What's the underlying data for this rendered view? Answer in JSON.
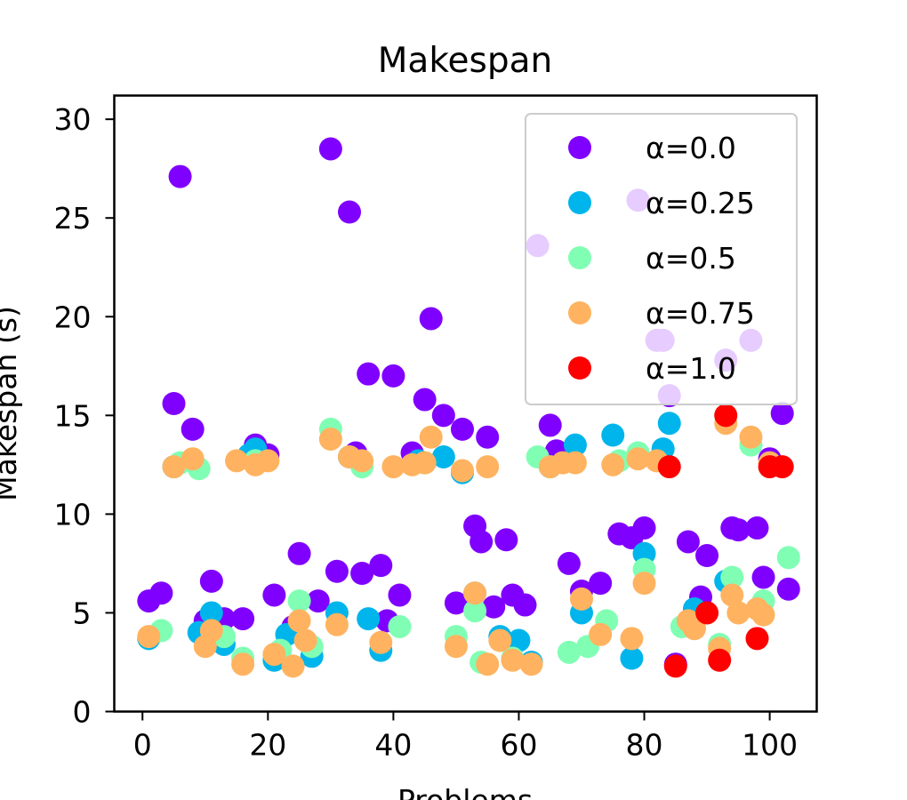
{
  "chart_data": {
    "type": "scatter",
    "title": "Makespan",
    "xlabel": "Problems",
    "ylabel": "Makespan (s)",
    "xlim": [
      -4.5,
      107.5
    ],
    "ylim": [
      0,
      31.2
    ],
    "xticks": [
      0,
      20,
      40,
      60,
      80,
      100
    ],
    "yticks": [
      0,
      5,
      10,
      15,
      20,
      25,
      30
    ],
    "grid": false,
    "legend_position": "top-right",
    "series": [
      {
        "name": "α=0.0",
        "color": "#8000ff",
        "points": [
          [
            1,
            5.6
          ],
          [
            3,
            6.0
          ],
          [
            5,
            15.6
          ],
          [
            6,
            27.1
          ],
          [
            8,
            14.3
          ],
          [
            10,
            4.6
          ],
          [
            11,
            6.6
          ],
          [
            13,
            4.7
          ],
          [
            16,
            4.7
          ],
          [
            18,
            13.5
          ],
          [
            20,
            13.0
          ],
          [
            21,
            5.9
          ],
          [
            24,
            4.3
          ],
          [
            25,
            8.0
          ],
          [
            28,
            5.6
          ],
          [
            30,
            28.5
          ],
          [
            31,
            7.1
          ],
          [
            33,
            25.3
          ],
          [
            34,
            13.1
          ],
          [
            35,
            7.0
          ],
          [
            36,
            17.1
          ],
          [
            38,
            7.4
          ],
          [
            39,
            4.6
          ],
          [
            40,
            17.0
          ],
          [
            41,
            5.9
          ],
          [
            43,
            13.1
          ],
          [
            45,
            15.8
          ],
          [
            46,
            19.9
          ],
          [
            48,
            15.0
          ],
          [
            50,
            5.5
          ],
          [
            51,
            14.3
          ],
          [
            53,
            9.4
          ],
          [
            54,
            8.6
          ],
          [
            55,
            13.9
          ],
          [
            56,
            5.3
          ],
          [
            58,
            8.7
          ],
          [
            59,
            5.9
          ],
          [
            61,
            5.4
          ],
          [
            63,
            23.6
          ],
          [
            65,
            14.5
          ],
          [
            66,
            13.2
          ],
          [
            68,
            7.5
          ],
          [
            70,
            6.1
          ],
          [
            73,
            6.5
          ],
          [
            76,
            9.0
          ],
          [
            78,
            8.8
          ],
          [
            79,
            25.9
          ],
          [
            80,
            9.3
          ],
          [
            82,
            18.8
          ],
          [
            83,
            18.8
          ],
          [
            84,
            16.0
          ],
          [
            85,
            2.4
          ],
          [
            87,
            8.6
          ],
          [
            89,
            5.8
          ],
          [
            90,
            7.9
          ],
          [
            93,
            17.8
          ],
          [
            94,
            9.3
          ],
          [
            95,
            9.2
          ],
          [
            97,
            18.8
          ],
          [
            98,
            9.3
          ],
          [
            99,
            6.8
          ],
          [
            100,
            12.8
          ],
          [
            102,
            15.1
          ],
          [
            103,
            6.2
          ]
        ]
      },
      {
        "name": "α=0.25",
        "color": "#00b5eb",
        "points": [
          [
            1,
            3.7
          ],
          [
            5,
            12.4
          ],
          [
            9,
            4.0
          ],
          [
            11,
            5.0
          ],
          [
            13,
            3.4
          ],
          [
            17,
            13.0
          ],
          [
            18,
            13.3
          ],
          [
            21,
            2.6
          ],
          [
            23,
            3.9
          ],
          [
            27,
            2.8
          ],
          [
            31,
            5.0
          ],
          [
            33,
            12.9
          ],
          [
            36,
            4.7
          ],
          [
            38,
            3.1
          ],
          [
            44,
            12.7
          ],
          [
            48,
            12.9
          ],
          [
            51,
            12.1
          ],
          [
            53,
            6.0
          ],
          [
            57,
            3.8
          ],
          [
            60,
            3.6
          ],
          [
            62,
            2.5
          ],
          [
            65,
            12.4
          ],
          [
            69,
            13.5
          ],
          [
            70,
            5.0
          ],
          [
            75,
            14.0
          ],
          [
            78,
            2.7
          ],
          [
            80,
            8.0
          ],
          [
            83,
            13.3
          ],
          [
            84,
            14.6
          ],
          [
            88,
            5.2
          ],
          [
            93,
            6.6
          ]
        ]
      },
      {
        "name": "α=0.5",
        "color": "#80ffb4",
        "points": [
          [
            3,
            4.1
          ],
          [
            6,
            12.6
          ],
          [
            9,
            12.3
          ],
          [
            13,
            3.8
          ],
          [
            16,
            2.7
          ],
          [
            18,
            12.7
          ],
          [
            22,
            3.1
          ],
          [
            25,
            5.6
          ],
          [
            27,
            3.3
          ],
          [
            30,
            14.3
          ],
          [
            35,
            12.4
          ],
          [
            41,
            4.3
          ],
          [
            45,
            12.6
          ],
          [
            50,
            3.8
          ],
          [
            53,
            5.1
          ],
          [
            54,
            2.5
          ],
          [
            59,
            2.7
          ],
          [
            63,
            12.9
          ],
          [
            68,
            3.0
          ],
          [
            71,
            3.3
          ],
          [
            74,
            4.6
          ],
          [
            76,
            12.7
          ],
          [
            79,
            13.1
          ],
          [
            80,
            7.2
          ],
          [
            86,
            4.3
          ],
          [
            92,
            3.4
          ],
          [
            94,
            6.8
          ],
          [
            97,
            13.5
          ],
          [
            99,
            5.6
          ],
          [
            103,
            7.8
          ]
        ]
      },
      {
        "name": "α=0.75",
        "color": "#ffb360",
        "points": [
          [
            1,
            3.8
          ],
          [
            5,
            12.4
          ],
          [
            8,
            12.8
          ],
          [
            10,
            3.3
          ],
          [
            11,
            4.1
          ],
          [
            15,
            12.7
          ],
          [
            16,
            2.4
          ],
          [
            18,
            12.5
          ],
          [
            20,
            12.7
          ],
          [
            21,
            2.9
          ],
          [
            24,
            2.3
          ],
          [
            25,
            4.6
          ],
          [
            26,
            3.6
          ],
          [
            30,
            13.8
          ],
          [
            31,
            4.4
          ],
          [
            33,
            12.9
          ],
          [
            35,
            12.7
          ],
          [
            38,
            3.5
          ],
          [
            40,
            12.4
          ],
          [
            43,
            12.5
          ],
          [
            45,
            12.6
          ],
          [
            46,
            13.9
          ],
          [
            50,
            3.3
          ],
          [
            51,
            12.2
          ],
          [
            53,
            6.0
          ],
          [
            55,
            12.4
          ],
          [
            55,
            2.4
          ],
          [
            57,
            3.6
          ],
          [
            59,
            2.6
          ],
          [
            62,
            2.4
          ],
          [
            65,
            12.4
          ],
          [
            67,
            12.6
          ],
          [
            69,
            12.6
          ],
          [
            70,
            5.7
          ],
          [
            73,
            3.9
          ],
          [
            75,
            12.5
          ],
          [
            78,
            3.7
          ],
          [
            79,
            12.8
          ],
          [
            80,
            6.5
          ],
          [
            82,
            12.7
          ],
          [
            87,
            4.6
          ],
          [
            88,
            4.2
          ],
          [
            92,
            3.2
          ],
          [
            93,
            14.6
          ],
          [
            94,
            5.9
          ],
          [
            95,
            5.0
          ],
          [
            97,
            13.9
          ],
          [
            98,
            5.2
          ],
          [
            99,
            4.9
          ],
          [
            100,
            12.6
          ]
        ]
      },
      {
        "name": "α=1.0",
        "color": "#ff0000",
        "points": [
          [
            84,
            12.4
          ],
          [
            85,
            2.3
          ],
          [
            90,
            5.0
          ],
          [
            92,
            2.6
          ],
          [
            93,
            15.0
          ],
          [
            98,
            3.7
          ],
          [
            100,
            12.4
          ],
          [
            102,
            12.4
          ]
        ]
      }
    ]
  }
}
